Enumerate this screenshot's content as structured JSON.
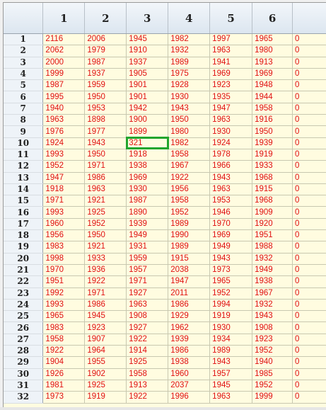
{
  "grid": {
    "columns": [
      "",
      "1",
      "2",
      "3",
      "4",
      "5",
      "6",
      ""
    ],
    "rows": [
      {
        "id": "1",
        "cells": [
          "2116",
          "2006",
          "1945",
          "1982",
          "1997",
          "1965",
          "0"
        ]
      },
      {
        "id": "2",
        "cells": [
          "2062",
          "1979",
          "1910",
          "1932",
          "1963",
          "1980",
          "0"
        ]
      },
      {
        "id": "3",
        "cells": [
          "2000",
          "1987",
          "1937",
          "1989",
          "1941",
          "1913",
          "0"
        ]
      },
      {
        "id": "4",
        "cells": [
          "1999",
          "1937",
          "1905",
          "1975",
          "1969",
          "1969",
          "0"
        ]
      },
      {
        "id": "5",
        "cells": [
          "1987",
          "1959",
          "1901",
          "1928",
          "1923",
          "1948",
          "0"
        ]
      },
      {
        "id": "6",
        "cells": [
          "1995",
          "1950",
          "1901",
          "1930",
          "1935",
          "1944",
          "0"
        ]
      },
      {
        "id": "7",
        "cells": [
          "1940",
          "1953",
          "1942",
          "1943",
          "1947",
          "1958",
          "0"
        ]
      },
      {
        "id": "8",
        "cells": [
          "1963",
          "1898",
          "1900",
          "1950",
          "1963",
          "1916",
          "0"
        ]
      },
      {
        "id": "9",
        "cells": [
          "1976",
          "1977",
          "1899",
          "1980",
          "1930",
          "1950",
          "0"
        ]
      },
      {
        "id": "10",
        "cells": [
          "1924",
          "1943",
          "321",
          "1982",
          "1924",
          "1939",
          "0"
        ]
      },
      {
        "id": "11",
        "cells": [
          "1993",
          "1950",
          "1918",
          "1958",
          "1978",
          "1919",
          "0"
        ]
      },
      {
        "id": "12",
        "cells": [
          "1952",
          "1971",
          "1938",
          "1967",
          "1966",
          "1933",
          "0"
        ]
      },
      {
        "id": "13",
        "cells": [
          "1947",
          "1986",
          "1969",
          "1922",
          "1943",
          "1968",
          "0"
        ]
      },
      {
        "id": "14",
        "cells": [
          "1918",
          "1963",
          "1930",
          "1956",
          "1963",
          "1915",
          "0"
        ]
      },
      {
        "id": "15",
        "cells": [
          "1971",
          "1921",
          "1987",
          "1958",
          "1953",
          "1968",
          "0"
        ]
      },
      {
        "id": "16",
        "cells": [
          "1993",
          "1925",
          "1890",
          "1952",
          "1946",
          "1909",
          "0"
        ]
      },
      {
        "id": "17",
        "cells": [
          "1960",
          "1952",
          "1939",
          "1989",
          "1970",
          "1920",
          "0"
        ]
      },
      {
        "id": "18",
        "cells": [
          "1956",
          "1950",
          "1949",
          "1990",
          "1969",
          "1951",
          "0"
        ]
      },
      {
        "id": "19",
        "cells": [
          "1983",
          "1921",
          "1931",
          "1989",
          "1949",
          "1988",
          "0"
        ]
      },
      {
        "id": "20",
        "cells": [
          "1998",
          "1933",
          "1959",
          "1915",
          "1943",
          "1932",
          "0"
        ]
      },
      {
        "id": "21",
        "cells": [
          "1970",
          "1936",
          "1957",
          "2038",
          "1973",
          "1949",
          "0"
        ]
      },
      {
        "id": "22",
        "cells": [
          "1951",
          "1922",
          "1971",
          "1947",
          "1965",
          "1938",
          "0"
        ]
      },
      {
        "id": "23",
        "cells": [
          "1992",
          "1971",
          "1927",
          "2011",
          "1952",
          "1967",
          "0"
        ]
      },
      {
        "id": "24",
        "cells": [
          "1993",
          "1986",
          "1963",
          "1986",
          "1994",
          "1932",
          "0"
        ]
      },
      {
        "id": "25",
        "cells": [
          "1965",
          "1945",
          "1908",
          "1929",
          "1919",
          "1943",
          "0"
        ]
      },
      {
        "id": "26",
        "cells": [
          "1983",
          "1923",
          "1927",
          "1962",
          "1930",
          "1908",
          "0"
        ]
      },
      {
        "id": "27",
        "cells": [
          "1958",
          "1907",
          "1922",
          "1939",
          "1934",
          "1923",
          "0"
        ]
      },
      {
        "id": "28",
        "cells": [
          "1922",
          "1964",
          "1914",
          "1986",
          "1989",
          "1952",
          "0"
        ]
      },
      {
        "id": "29",
        "cells": [
          "1904",
          "1955",
          "1925",
          "1938",
          "1943",
          "1940",
          "0"
        ]
      },
      {
        "id": "30",
        "cells": [
          "1926",
          "1902",
          "1958",
          "1960",
          "1957",
          "1985",
          "0"
        ]
      },
      {
        "id": "31",
        "cells": [
          "1981",
          "1925",
          "1913",
          "2037",
          "1945",
          "1952",
          "0"
        ]
      },
      {
        "id": "32",
        "cells": [
          "1973",
          "1919",
          "1922",
          "1996",
          "1963",
          "1999",
          "0"
        ]
      }
    ],
    "selected_cell": {
      "row": "10",
      "column": "3"
    },
    "colors": {
      "cell_background": "#fffce0",
      "cell_text": "#e01010",
      "selection_outline": "#22a52e",
      "header_background": "#dce6f0"
    }
  }
}
